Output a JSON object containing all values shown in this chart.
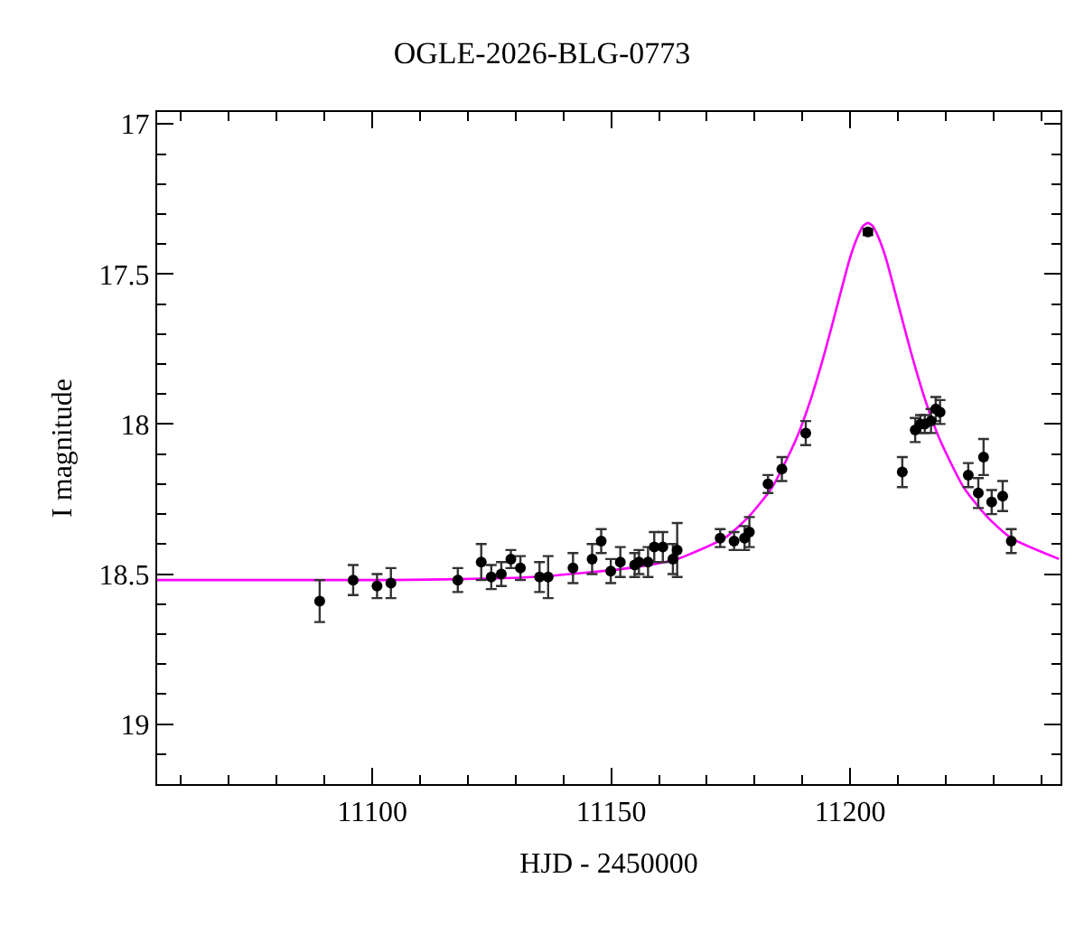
{
  "chart_data": {
    "type": "scatter",
    "title": "OGLE-2026-BLG-0773",
    "xlabel": "HJD - 2450000",
    "ylabel": "I magnitude",
    "xlim": [
      11055,
      11244
    ],
    "ylim": [
      19.2,
      16.96
    ],
    "xticks": [
      {
        "value": 11060,
        "label": null
      },
      {
        "value": 11070,
        "label": null
      },
      {
        "value": 11080,
        "label": null
      },
      {
        "value": 11090,
        "label": null
      },
      11100,
      {
        "value": 11110,
        "label": null
      },
      {
        "value": 11120,
        "label": null
      },
      {
        "value": 11130,
        "label": null
      },
      {
        "value": 11140,
        "label": null
      },
      11150,
      {
        "value": 11160,
        "label": null
      },
      {
        "value": 11170,
        "label": null
      },
      {
        "value": 11180,
        "label": null
      },
      {
        "value": 11190,
        "label": null
      },
      11200,
      {
        "value": 11210,
        "label": null
      },
      {
        "value": 11220,
        "label": null
      },
      {
        "value": 11230,
        "label": null
      },
      {
        "value": 11240,
        "label": null
      }
    ],
    "yticks": [
      17,
      {
        "value": 17.1,
        "label": null
      },
      {
        "value": 17.2,
        "label": null
      },
      {
        "value": 17.3,
        "label": null
      },
      {
        "value": 17.4,
        "label": null
      },
      {
        "value": 17.5,
        "label": "17.5"
      },
      {
        "value": 17.6,
        "label": null
      },
      {
        "value": 17.7,
        "label": null
      },
      {
        "value": 17.8,
        "label": null
      },
      {
        "value": 17.9,
        "label": null
      },
      18,
      {
        "value": 18.1,
        "label": null
      },
      {
        "value": 18.2,
        "label": null
      },
      {
        "value": 18.3,
        "label": null
      },
      {
        "value": 18.4,
        "label": null
      },
      {
        "value": 18.5,
        "label": "18.5"
      },
      {
        "value": 18.6,
        "label": null
      },
      {
        "value": 18.7,
        "label": null
      },
      {
        "value": 18.8,
        "label": null
      },
      {
        "value": 18.9,
        "label": null
      },
      19,
      {
        "value": 19.1,
        "label": null
      }
    ],
    "series": [
      {
        "type": "line",
        "color": "#ff00ff",
        "line_style": "solid",
        "marker": "none",
        "x": [
          11055,
          11103.7,
          11133.7,
          11153.7,
          11163.7,
          11173.7,
          11178.7,
          11183.7,
          11188.7,
          11191.7,
          11194.7,
          11197.7,
          11199.7,
          11200.7,
          11201.7,
          11202.7,
          11203.7,
          11204.7,
          11205.7,
          11206.7,
          11207.7,
          11209.7,
          11212.7,
          11215.7,
          11218.7,
          11223.7,
          11228.7,
          11233.7,
          11243.7
        ],
        "values": [
          18.52,
          18.52,
          18.51,
          18.48,
          18.45,
          18.38,
          18.31,
          18.21,
          18.05,
          17.92,
          17.76,
          17.58,
          17.46,
          17.41,
          17.37,
          17.34,
          17.33,
          17.34,
          17.37,
          17.41,
          17.46,
          17.58,
          17.76,
          17.92,
          18.05,
          18.21,
          18.31,
          18.38,
          18.45
        ]
      },
      {
        "type": "scatter",
        "color": "#000000",
        "marker": "circle",
        "x": [
          11089.0,
          11096.0,
          11101.0,
          11103.9,
          11117.9,
          11122.8,
          11124.9,
          11127.0,
          11129.0,
          11131.0,
          11135.0,
          11136.8,
          11142.0,
          11146.0,
          11147.9,
          11149.9,
          11151.9,
          11154.9,
          11155.8,
          11157.7,
          11159.0,
          11160.8,
          11162.9,
          11163.8,
          11172.8,
          11175.7,
          11177.9,
          11178.9,
          11182.8,
          11185.7,
          11190.7,
          11203.7,
          11210.9,
          11213.6,
          11214.7,
          11215.6,
          11216.9,
          11217.9,
          11218.8,
          11224.7,
          11226.8,
          11227.9,
          11229.6,
          11231.9,
          11233.7
        ],
        "values": [
          18.59,
          18.52,
          18.54,
          18.53,
          18.52,
          18.46,
          18.51,
          18.5,
          18.45,
          18.48,
          18.51,
          18.51,
          18.48,
          18.45,
          18.39,
          18.49,
          18.46,
          18.47,
          18.46,
          18.46,
          18.41,
          18.41,
          18.45,
          18.42,
          18.38,
          18.39,
          18.38,
          18.36,
          18.2,
          18.15,
          18.03,
          17.36,
          18.16,
          18.02,
          18.0,
          18.0,
          17.99,
          17.95,
          17.96,
          18.17,
          18.23,
          18.11,
          18.26,
          18.24,
          18.39
        ],
        "errors": [
          0.07,
          0.05,
          0.04,
          0.05,
          0.04,
          0.06,
          0.04,
          0.04,
          0.03,
          0.04,
          0.05,
          0.07,
          0.05,
          0.05,
          0.04,
          0.04,
          0.05,
          0.04,
          0.04,
          0.05,
          0.05,
          0.05,
          0.05,
          0.09,
          0.03,
          0.03,
          0.04,
          0.05,
          0.03,
          0.04,
          0.04,
          0.01,
          0.05,
          0.04,
          0.03,
          0.03,
          0.04,
          0.04,
          0.04,
          0.04,
          0.05,
          0.06,
          0.04,
          0.05,
          0.04
        ]
      }
    ]
  }
}
